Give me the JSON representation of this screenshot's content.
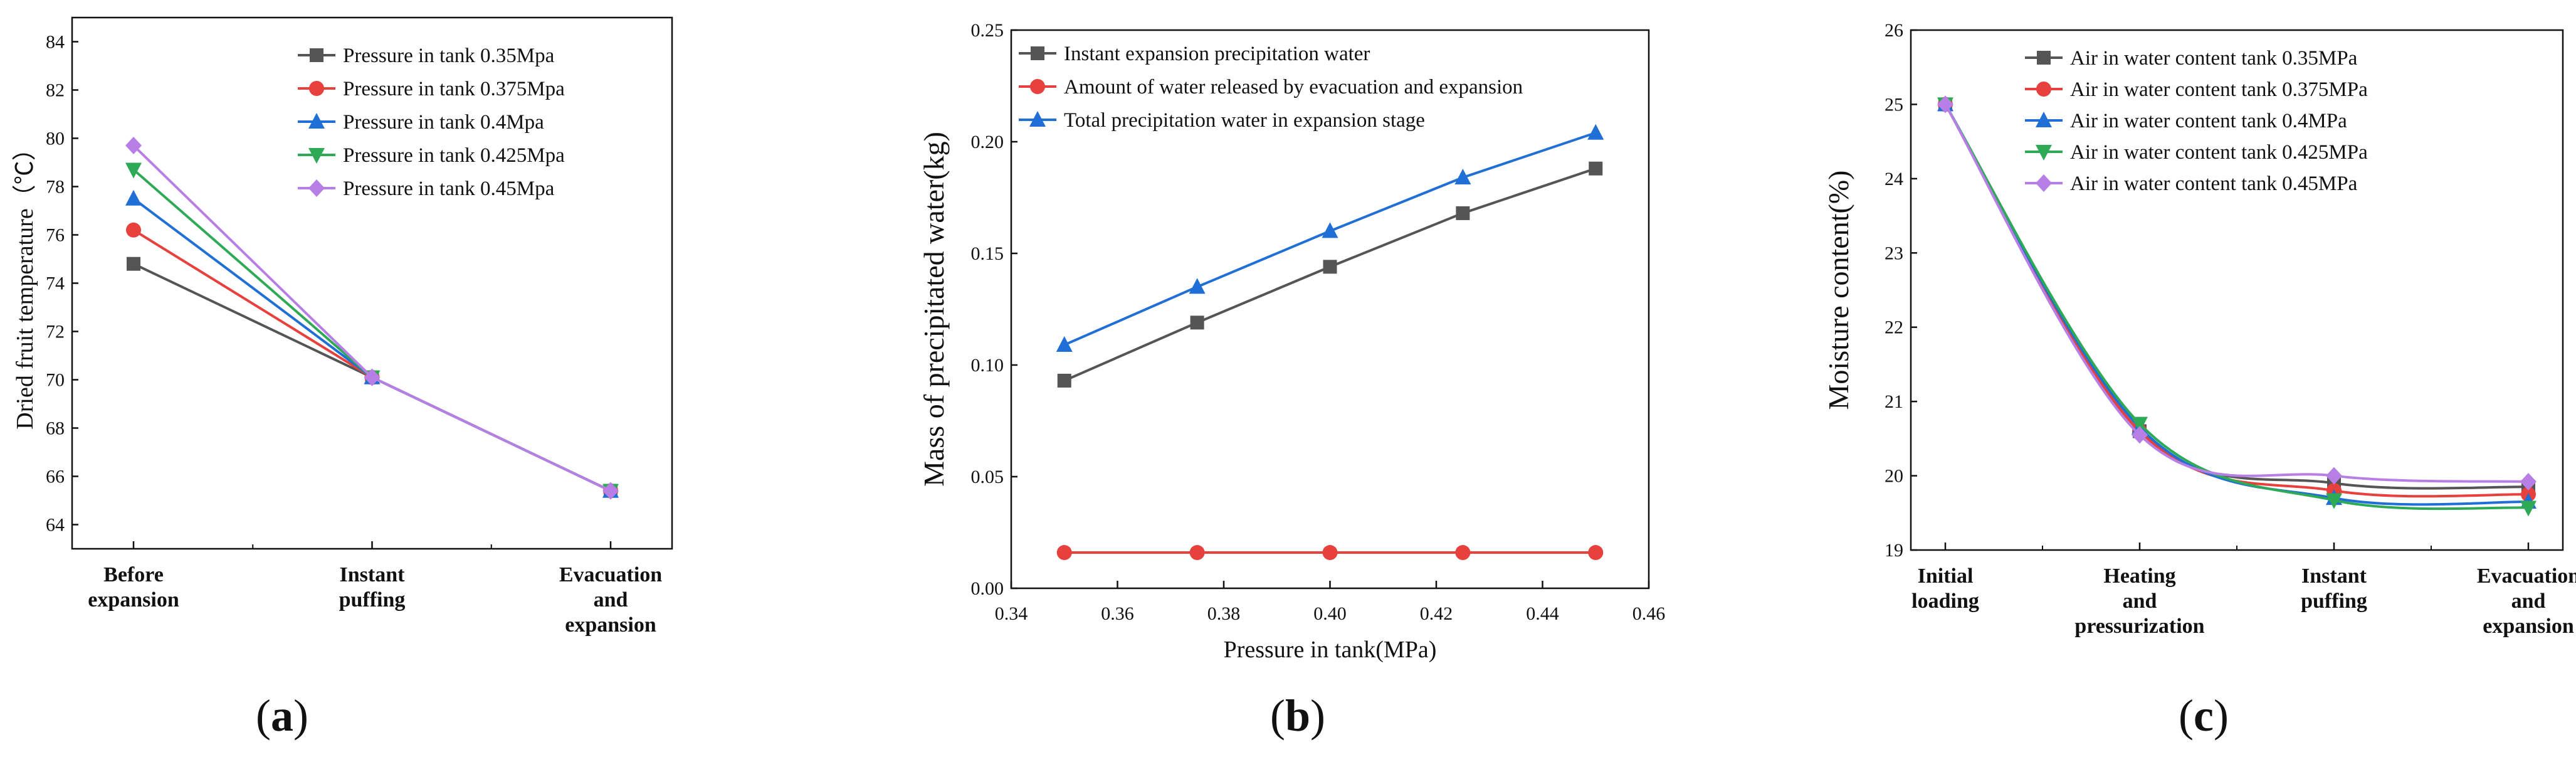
{
  "colors": {
    "black": "#555555",
    "red": "#e8403c",
    "blue": "#1f6fd6",
    "green": "#2eaa57",
    "purple": "#b77fe6"
  },
  "panels": [
    {
      "paren_open": "(",
      "letter": "a",
      "paren_close": ")"
    },
    {
      "paren_open": "(",
      "letter": "b",
      "paren_close": ")"
    },
    {
      "paren_open": "(",
      "letter": "c",
      "paren_close": ")"
    }
  ],
  "chart_data": [
    {
      "type": "line",
      "title": "",
      "xlabel": "",
      "ylabel": "Dried fruit temperature（℃）",
      "categories": [
        [
          "Before",
          "expansion"
        ],
        [
          "Instant",
          "puffing"
        ],
        [
          "Evacuation",
          "and",
          "expansion"
        ]
      ],
      "ylim": [
        63,
        85
      ],
      "yticks": [
        "64",
        "66",
        "68",
        "70",
        "72",
        "74",
        "76",
        "78",
        "80",
        "82",
        "84"
      ],
      "legend_position": "top-right",
      "series": [
        {
          "name": "Pressure in tank 0.35Mpa",
          "color": "#555555",
          "marker": "square",
          "values": [
            74.8,
            70.1,
            65.4
          ]
        },
        {
          "name": "Pressure in tank 0.375Mpa",
          "color": "#e8403c",
          "marker": "circle",
          "values": [
            76.2,
            70.1,
            65.4
          ]
        },
        {
          "name": "Pressure in tank 0.4Mpa",
          "color": "#1f6fd6",
          "marker": "triangle-up",
          "values": [
            77.5,
            70.1,
            65.4
          ]
        },
        {
          "name": "Pressure in tank 0.425Mpa",
          "color": "#2eaa57",
          "marker": "triangle-down",
          "values": [
            78.7,
            70.1,
            65.4
          ]
        },
        {
          "name": "Pressure in tank 0.45Mpa",
          "color": "#b77fe6",
          "marker": "diamond",
          "values": [
            79.7,
            70.1,
            65.4
          ]
        }
      ]
    },
    {
      "type": "line",
      "title": "",
      "xlabel": "Pressure in tank(MPa)",
      "ylabel": "Mass of precipitated water(kg)",
      "xlim": [
        0.34,
        0.46
      ],
      "xticks": [
        "0.34",
        "0.36",
        "0.38",
        "0.40",
        "0.42",
        "0.44",
        "0.46"
      ],
      "ylim": [
        0,
        0.25
      ],
      "yticks": [
        "0.00",
        "0.05",
        "0.10",
        "0.15",
        "0.20",
        "0.25"
      ],
      "legend_position": "top-left",
      "x": [
        0.35,
        0.375,
        0.4,
        0.425,
        0.45
      ],
      "series": [
        {
          "name": "Instant expansion precipitation water",
          "color": "#555555",
          "marker": "square",
          "values": [
            0.093,
            0.119,
            0.144,
            0.168,
            0.188
          ]
        },
        {
          "name": "Amount of water released by evacuation and expansion",
          "color": "#e8403c",
          "marker": "circle",
          "values": [
            0.016,
            0.016,
            0.016,
            0.016,
            0.016
          ]
        },
        {
          "name": "Total precipitation water in expansion stage",
          "color": "#1f6fd6",
          "marker": "triangle-up",
          "values": [
            0.109,
            0.135,
            0.16,
            0.184,
            0.204
          ]
        }
      ]
    },
    {
      "type": "line",
      "title": "",
      "xlabel": "",
      "ylabel": "Moisture content(%)",
      "categories": [
        [
          "Initial",
          "loading"
        ],
        [
          "Heating",
          "and",
          "pressurization"
        ],
        [
          "Instant",
          "puffing"
        ],
        [
          "Evacuation",
          "and",
          "expansion"
        ]
      ],
      "ylim": [
        19,
        26
      ],
      "yticks": [
        "19",
        "20",
        "21",
        "22",
        "23",
        "24",
        "25",
        "26"
      ],
      "legend_position": "top-right",
      "series": [
        {
          "name": "Air in water content tank 0.35MPa",
          "color": "#555555",
          "marker": "square",
          "values": [
            25.0,
            20.6,
            19.9,
            19.85
          ]
        },
        {
          "name": "Air in water content tank 0.375MPa",
          "color": "#e8403c",
          "marker": "circle",
          "values": [
            25.0,
            20.6,
            19.8,
            19.75
          ]
        },
        {
          "name": "Air in water content tank 0.4MPa",
          "color": "#1f6fd6",
          "marker": "triangle-up",
          "values": [
            25.0,
            20.65,
            19.7,
            19.65
          ]
        },
        {
          "name": "Air in water content tank 0.425MPa",
          "color": "#2eaa57",
          "marker": "triangle-down",
          "values": [
            25.0,
            20.7,
            19.67,
            19.57
          ]
        },
        {
          "name": "Air in water content tank 0.45MPa",
          "color": "#b77fe6",
          "marker": "diamond",
          "values": [
            25.0,
            20.55,
            20.0,
            19.92
          ]
        }
      ]
    }
  ]
}
